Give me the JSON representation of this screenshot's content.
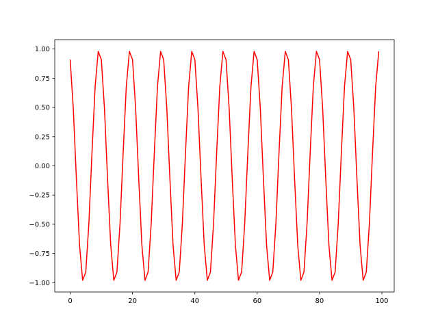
{
  "chart_data": {
    "type": "line",
    "title": "",
    "xlabel": "",
    "ylabel": "",
    "xlim": [
      -4.95,
      103.95
    ],
    "ylim": [
      -1.08,
      1.08
    ],
    "grid": false,
    "xticks": [
      0,
      20,
      40,
      60,
      80,
      100
    ],
    "xtick_labels": [
      "0",
      "20",
      "40",
      "60",
      "80",
      "100"
    ],
    "yticks": [
      1.0,
      0.75,
      0.5,
      0.25,
      0.0,
      -0.25,
      -0.5,
      -0.75,
      -1.0
    ],
    "ytick_labels": [
      "1.00",
      "0.75",
      "0.50",
      "0.25",
      "0.00",
      "−0.25",
      "−0.50",
      "−0.75",
      "−1.00"
    ],
    "series": [
      {
        "color": "#ff0000",
        "x": [
          0,
          1,
          2,
          3,
          4,
          5,
          6,
          7,
          8,
          9,
          10,
          11,
          12,
          13,
          14,
          15,
          16,
          17,
          18,
          19,
          20,
          21,
          22,
          23,
          24,
          25,
          26,
          27,
          28,
          29,
          30,
          31,
          32,
          33,
          34,
          35,
          36,
          37,
          38,
          39,
          40,
          41,
          42,
          43,
          44,
          45,
          46,
          47,
          48,
          49,
          50,
          51,
          52,
          53,
          54,
          55,
          56,
          57,
          58,
          59,
          60,
          61,
          62,
          63,
          64,
          65,
          66,
          67,
          68,
          69,
          70,
          71,
          72,
          73,
          74,
          75,
          76,
          77,
          78,
          79,
          80,
          81,
          82,
          83,
          84,
          85,
          86,
          87,
          88,
          89,
          90,
          91,
          92,
          93,
          94,
          95,
          96,
          97,
          98,
          99
        ],
        "y": [
          0.909,
          0.491,
          -0.115,
          -0.677,
          -0.98,
          -0.909,
          -0.491,
          0.115,
          0.677,
          0.98,
          0.909,
          0.491,
          -0.115,
          -0.677,
          -0.98,
          -0.909,
          -0.491,
          0.115,
          0.677,
          0.98,
          0.909,
          0.491,
          -0.115,
          -0.677,
          -0.98,
          -0.909,
          -0.491,
          0.115,
          0.677,
          0.98,
          0.909,
          0.491,
          -0.115,
          -0.677,
          -0.98,
          -0.909,
          -0.491,
          0.115,
          0.677,
          0.98,
          0.909,
          0.491,
          -0.115,
          -0.677,
          -0.98,
          -0.909,
          -0.491,
          0.115,
          0.677,
          0.98,
          0.909,
          0.491,
          -0.115,
          -0.677,
          -0.98,
          -0.909,
          -0.491,
          0.115,
          0.677,
          0.98,
          0.909,
          0.491,
          -0.115,
          -0.677,
          -0.98,
          -0.909,
          -0.491,
          0.115,
          0.677,
          0.98,
          0.909,
          0.491,
          -0.115,
          -0.677,
          -0.98,
          -0.909,
          -0.491,
          0.115,
          0.677,
          0.98,
          0.909,
          0.491,
          -0.115,
          -0.677,
          -0.98,
          -0.909,
          -0.491,
          0.115,
          0.677,
          0.98,
          0.909,
          0.491,
          -0.115,
          -0.677,
          -0.98,
          -0.909,
          -0.491,
          0.115,
          0.677,
          0.98
        ]
      }
    ]
  }
}
